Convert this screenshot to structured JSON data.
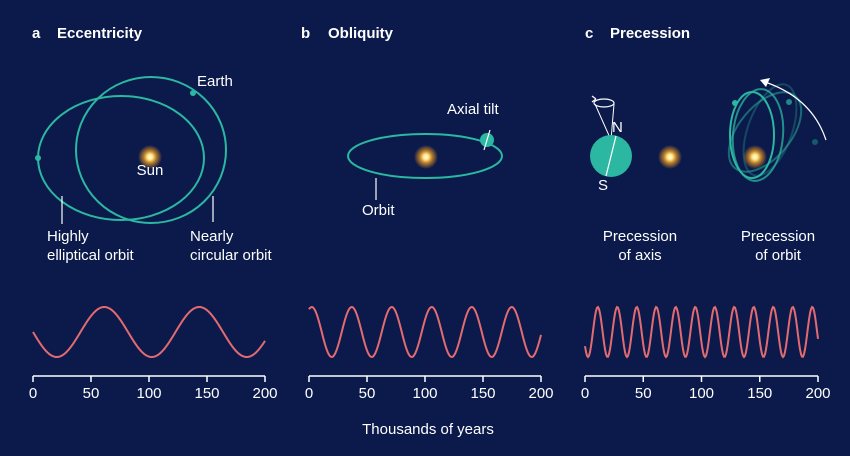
{
  "panels": [
    {
      "letter": "a",
      "title": "Eccentricity",
      "earth": "Earth",
      "sun": "Sun",
      "left_label": [
        "Highly",
        "elliptical orbit"
      ],
      "right_label": [
        "Nearly",
        "circular orbit"
      ],
      "ticks": [
        0,
        50,
        100,
        150,
        200
      ]
    },
    {
      "letter": "b",
      "title": "Obliquity",
      "tilt": "Axial tilt",
      "orbit": "Orbit",
      "ticks": [
        0,
        50,
        100,
        150,
        200
      ]
    },
    {
      "letter": "c",
      "title": "Precession",
      "north": "N",
      "south": "S",
      "left_label": [
        "Precession",
        "of axis"
      ],
      "right_label": [
        "Precession",
        "of orbit"
      ],
      "ticks": [
        0,
        50,
        100,
        150,
        200
      ]
    }
  ],
  "axis_label": "Thousands of years"
}
